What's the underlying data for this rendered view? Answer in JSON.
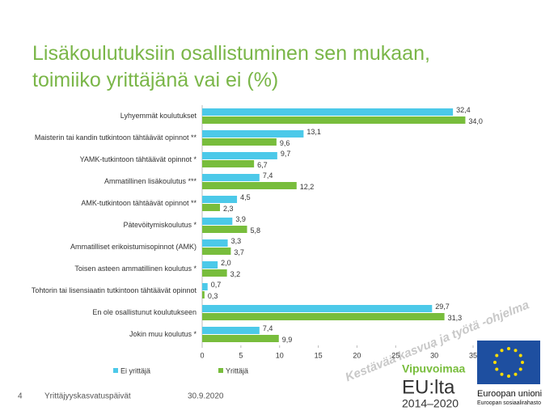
{
  "chart_data": {
    "type": "barh",
    "title": "Lisäkoulutuksiin osallistuminen sen mukaan, toimiiko yrittäjänä vai ei (%)",
    "categories": [
      "Lyhyemmät koulutukset",
      "Maisterin tai kandin tutkintoon tähtäävät opinnot **",
      "YAMK-tutkintoon tähtäävät opinnot *",
      "Ammatillinen lisäkoulutus ***",
      "AMK-tutkintoon tähtäävät opinnot **",
      "Pätevöitymiskoulutus *",
      "Ammatilliset erikoistumisopinnot (AMK)",
      "Toisen asteen ammatillinen koulutus *",
      "Tohtorin tai lisensiaatin tutkintoon tähtäävät opinnot",
      "En ole osallistunut koulutukseen",
      "Jokin muu koulutus *"
    ],
    "series": [
      {
        "name": "Ei yrittäjä",
        "color": "#4cc9e9",
        "values": [
          32.4,
          13.1,
          9.7,
          7.4,
          4.5,
          3.9,
          3.3,
          2.0,
          0.7,
          29.7,
          7.4
        ],
        "value_labels": [
          "32,4",
          "13,1",
          "9,7",
          "7,4",
          "4,5",
          "3,9",
          "3,3",
          "2,0",
          "0,7",
          "29,7",
          "7,4"
        ]
      },
      {
        "name": "Yrittäjä",
        "color": "#78bd3c",
        "values": [
          34.0,
          9.6,
          6.7,
          12.2,
          2.3,
          5.8,
          3.7,
          3.2,
          0.3,
          31.3,
          9.9
        ],
        "value_labels": [
          "34,0",
          "9,6",
          "6,7",
          "12,2",
          "2,3",
          "5,8",
          "3,7",
          "3,2",
          "0,3",
          "31,3",
          "9,9"
        ]
      }
    ],
    "xlim": [
      0,
      35
    ],
    "xticks": [
      0,
      5,
      10,
      15,
      20,
      25,
      30,
      35
    ],
    "grid": false,
    "legend": "bottom"
  },
  "footer": {
    "page": "4",
    "event": "Yrittäjyyskasvatuspäivät",
    "date": "30.9.2020"
  },
  "logos": {
    "watermark": "Kestävää kasvua ja työtä -ohjelma",
    "vipu": "Vipuvoimaa",
    "eu": "EU:lta",
    "years": "2014–2020",
    "union": "Euroopan unioni",
    "fund": "Euroopan sosiaalirahasto"
  }
}
